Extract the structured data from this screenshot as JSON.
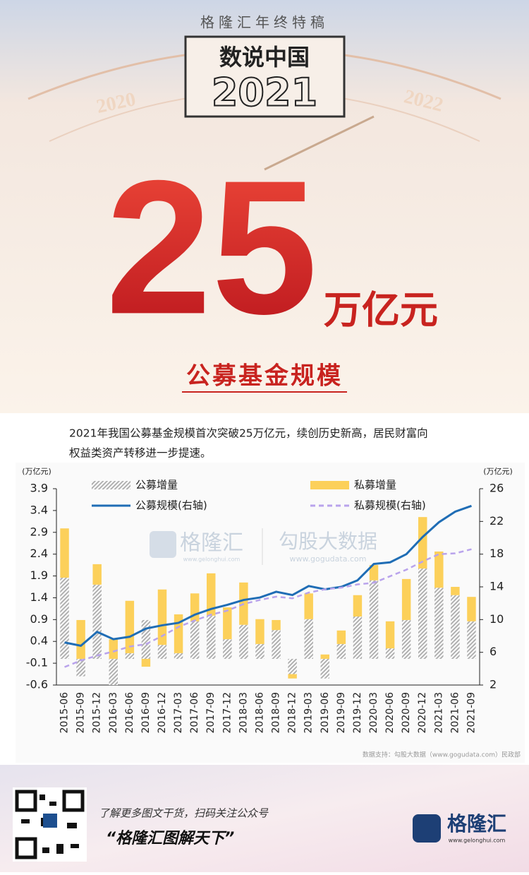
{
  "header": {
    "series_title": "格隆汇年终特稿",
    "badge_title": "数说中国",
    "badge_year": "2021",
    "left_year": "2020",
    "right_year": "2022",
    "big_number": "25",
    "unit": "万亿元",
    "subtitle": "公募基金规模"
  },
  "description": [
    "2021年我国公募基金规模首次突破25万亿元，续创历史新高，居民财富向",
    "权益类资产转移进一步提速。"
  ],
  "chart_data": {
    "type": "combo",
    "y_unit": "(万亿元)",
    "y2_unit": "(万亿元)",
    "watermark": [
      "格隆汇",
      "www.gelonghui.com",
      "勾股大数据",
      "www.gogudata.com"
    ],
    "source": "数据支持：勾股大数据（www.gogudata.com）民政部",
    "categories": [
      "2015-06",
      "2015-09",
      "2015-12",
      "2016-03",
      "2016-06",
      "2016-09",
      "2016-12",
      "2017-03",
      "2017-06",
      "2017-09",
      "2017-12",
      "2018-03",
      "2018-06",
      "2018-09",
      "2018-12",
      "2019-03",
      "2019-06",
      "2019-09",
      "2019-12",
      "2020-03",
      "2020-06",
      "2020-09",
      "2020-12",
      "2021-03",
      "2021-06",
      "2021-09"
    ],
    "series": [
      {
        "name": "公募增量",
        "kind": "bar",
        "color": "#bdbdbd",
        "values": [
          1.86,
          -0.4,
          1.7,
          -0.6,
          0.13,
          0.89,
          0.32,
          0.13,
          0.86,
          0.99,
          0.45,
          0.78,
          0.34,
          0.66,
          -0.35,
          0.91,
          -0.45,
          0.34,
          0.97,
          1.8,
          0.24,
          0.89,
          2.07,
          1.63,
          1.46,
          0.86
        ]
      },
      {
        "name": "私募增量",
        "kind": "bar",
        "color": "#fcd05a",
        "values": [
          1.13,
          0.89,
          0.47,
          0.45,
          1.2,
          -0.18,
          1.27,
          0.89,
          0.64,
          0.97,
          0.73,
          0.97,
          0.57,
          0.23,
          -0.1,
          0.59,
          0.1,
          0.31,
          0.49,
          0.35,
          0.62,
          0.94,
          1.18,
          0.83,
          0.19,
          0.56
        ]
      },
      {
        "name": "公募规模(右轴)",
        "kind": "line",
        "axis": "y2",
        "color": "#1f6db5",
        "values": [
          7.2,
          6.8,
          8.5,
          7.6,
          7.9,
          8.9,
          9.3,
          9.6,
          10.6,
          11.3,
          11.8,
          12.4,
          12.7,
          13.4,
          13.0,
          14.1,
          13.7,
          14.0,
          14.8,
          16.8,
          17.0,
          18.0,
          20.1,
          21.9,
          23.2,
          23.9
        ]
      },
      {
        "name": "私募规模(右轴)",
        "kind": "dash",
        "axis": "y2",
        "color": "#b9a3ec",
        "values": [
          4.2,
          5.0,
          5.6,
          6.1,
          6.7,
          7.0,
          8.0,
          9.1,
          9.9,
          10.6,
          11.1,
          11.9,
          12.4,
          12.8,
          12.6,
          13.3,
          13.7,
          13.9,
          14.3,
          14.5,
          15.3,
          16.1,
          17.1,
          18.0,
          18.1,
          18.6
        ]
      }
    ],
    "ylim": [
      -0.6,
      3.9
    ],
    "yticks": [
      -0.6,
      -0.1,
      0.4,
      0.9,
      1.4,
      1.9,
      2.4,
      2.9,
      3.4,
      3.9
    ],
    "y2lim": [
      2,
      26
    ],
    "y2ticks": [
      2,
      6,
      10,
      14,
      18,
      22,
      26
    ]
  },
  "footer": {
    "prompt": "了解更多图文干货，扫码关注公众号",
    "slogan": "“格隆汇图解天下”",
    "logo": "格隆汇",
    "site": "www.gelonghui.com"
  }
}
